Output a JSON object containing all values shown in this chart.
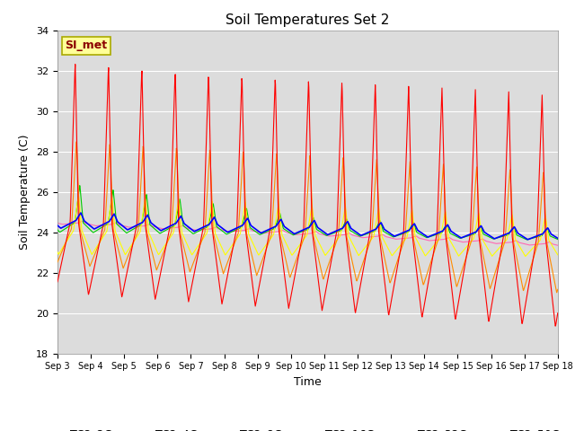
{
  "title": "Soil Temperatures Set 2",
  "xlabel": "Time",
  "ylabel": "Soil Temperature (C)",
  "ylim": [
    18,
    34
  ],
  "yticks": [
    18,
    20,
    22,
    24,
    26,
    28,
    30,
    32,
    34
  ],
  "x_labels": [
    "Sep 3",
    "Sep 4",
    "Sep 5",
    "Sep 6",
    "Sep 7",
    "Sep 8",
    "Sep 9",
    "Sep 10",
    "Sep 11",
    "Sep 12",
    "Sep 13",
    "Sep 14",
    "Sep 15",
    "Sep 16",
    "Sep 17",
    "Sep 18"
  ],
  "series_colors": {
    "TC2_2Cm": "#FF0000",
    "TC2_4Cm": "#FF8C00",
    "TC2_8Cm": "#FFFF00",
    "TC2_16Cm": "#00CC00",
    "TC2_32Cm": "#0000FF",
    "TC2_50Cm": "#FF69B4"
  },
  "annotation_text": "SI_met",
  "annotation_box_color": "#FFFF99",
  "annotation_text_color": "#8B0000",
  "background_color": "#DCDCDC",
  "title_fontsize": 11,
  "axis_label_fontsize": 9,
  "legend_fontsize": 9
}
